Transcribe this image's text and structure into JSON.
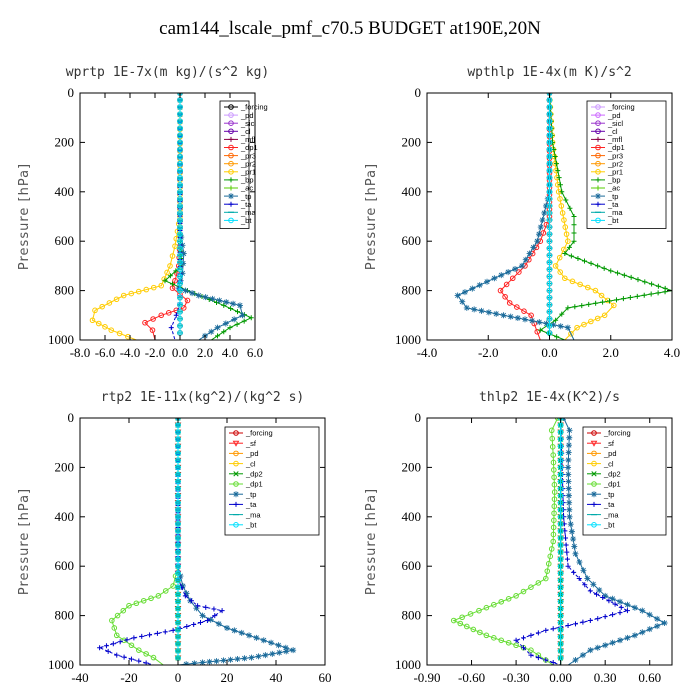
{
  "title": "cam144_lscale_pmf_c70.5  BUDGET at190E,20N",
  "chart_data": [
    {
      "type": "line",
      "title": "wprtp  1E-7x(m kg)/(s^2 kg)",
      "ylabel": "Pressure [hPa]",
      "xlim": [
        -8,
        6
      ],
      "ylim": [
        1000,
        0
      ],
      "xticks": [
        -8,
        -6,
        -4,
        -2,
        0,
        2,
        4,
        6
      ],
      "xticklabels": [
        "-8.0",
        "-6.0",
        "-4.0",
        "-2.0",
        "0.0",
        "2.0",
        "4.0",
        "6.0"
      ],
      "yticks": [
        0,
        200,
        400,
        600,
        800,
        1000
      ],
      "legend": [
        "_forcing",
        "_pd",
        "_sicl",
        "_cl",
        "_mfl",
        "_dp1",
        "_pr3",
        "_pr2",
        "_pr1",
        "_bp",
        "_ac",
        "_tp",
        "_ta",
        "_ma",
        "_bt"
      ],
      "series": [
        {
          "name": "_forcing",
          "color": "#000000",
          "marker": "o",
          "x": [
            0,
            0
          ],
          "y": [
            0,
            1000
          ]
        },
        {
          "name": "_pd",
          "color": "#cc99ff",
          "marker": "o",
          "x": [
            0,
            0
          ],
          "y": [
            0,
            1000
          ]
        },
        {
          "name": "_sicl",
          "color": "#9933cc",
          "marker": "o",
          "x": [
            0,
            0
          ],
          "y": [
            0,
            1000
          ]
        },
        {
          "name": "_cl",
          "color": "#6600aa",
          "marker": "o",
          "x": [
            0,
            0
          ],
          "y": [
            0,
            1000
          ]
        },
        {
          "name": "_mfl",
          "color": "#880044",
          "marker": "+",
          "x": [
            0,
            0
          ],
          "y": [
            0,
            1000
          ]
        },
        {
          "name": "_dp1",
          "color": "#ff2222",
          "marker": "o",
          "x": [
            0,
            0,
            -0.1,
            -0.4,
            -0.6,
            0.6,
            0.3,
            -1.5,
            -2.8,
            -2.2,
            -2.0
          ],
          "y": [
            0,
            600,
            700,
            760,
            790,
            840,
            870,
            900,
            930,
            960,
            1000
          ]
        },
        {
          "name": "_pr3",
          "color": "#ff6600",
          "marker": "o",
          "x": [
            0,
            0
          ],
          "y": [
            0,
            1000
          ]
        },
        {
          "name": "_pr2",
          "color": "#ff9900",
          "marker": "o",
          "x": [
            0,
            0
          ],
          "y": [
            0,
            1000
          ]
        },
        {
          "name": "_pr1",
          "color": "#ffcc00",
          "marker": "o",
          "x": [
            0,
            0,
            -0.4,
            -0.8,
            -1.5,
            -4.5,
            -6.8,
            -7.0,
            -5.5,
            -3.5
          ],
          "y": [
            0,
            500,
            620,
            700,
            780,
            820,
            880,
            920,
            960,
            1000
          ]
        },
        {
          "name": "_bp",
          "color": "#009900",
          "marker": "+",
          "x": [
            0,
            0,
            0.1,
            -1.2,
            0.6,
            3.5,
            5.7,
            4.0,
            2.5
          ],
          "y": [
            0,
            550,
            700,
            760,
            800,
            860,
            910,
            950,
            1000
          ]
        },
        {
          "name": "_ac",
          "color": "#55cc00",
          "marker": "+",
          "x": [
            0,
            0
          ],
          "y": [
            0,
            1000
          ]
        },
        {
          "name": "_tp",
          "color": "#1a6a9a",
          "marker": "*",
          "x": [
            0,
            0,
            0.3,
            0.2,
            -0.1,
            1.5,
            4.8,
            5.0,
            3.0,
            1.5
          ],
          "y": [
            0,
            550,
            650,
            730,
            790,
            820,
            860,
            900,
            950,
            1000
          ]
        },
        {
          "name": "_ta",
          "color": "#0000cc",
          "marker": "+",
          "x": [
            0,
            0,
            -0.3,
            -0.7,
            -0.4
          ],
          "y": [
            0,
            850,
            900,
            950,
            1000
          ]
        },
        {
          "name": "_ma",
          "color": "#00aaaa",
          "marker": "-",
          "x": [
            0,
            0
          ],
          "y": [
            0,
            1000
          ]
        },
        {
          "name": "_bt",
          "color": "#00e0ff",
          "marker": "o",
          "x": [
            0,
            0
          ],
          "y": [
            0,
            1000
          ]
        }
      ]
    },
    {
      "type": "line",
      "title": "wpthlp  1E-4x(m K)/s^2",
      "ylabel": "Pressure [hPa]",
      "xlim": [
        -4,
        4
      ],
      "ylim": [
        1000,
        0
      ],
      "xticks": [
        -4,
        -2,
        0,
        2,
        4
      ],
      "xticklabels": [
        "-4.0",
        "-2.0",
        "0.0",
        "2.0",
        "4.0"
      ],
      "yticks": [
        0,
        200,
        400,
        600,
        800,
        1000
      ],
      "legend": [
        "_forcing",
        "_pd",
        "_sicl",
        "_cl",
        "_mfl",
        "_dp1",
        "_pr3",
        "_pr2",
        "_pr1",
        "_bp",
        "_ac",
        "_tp",
        "_ta",
        "_ma",
        "_bt"
      ],
      "series": [
        {
          "name": "_forcing",
          "color": "#cc99ff",
          "marker": "o",
          "x": [
            0,
            0
          ],
          "y": [
            0,
            1000
          ]
        },
        {
          "name": "_pd",
          "color": "#cc66ff",
          "marker": "o",
          "x": [
            0,
            0
          ],
          "y": [
            0,
            1000
          ]
        },
        {
          "name": "_sicl",
          "color": "#9933cc",
          "marker": "o",
          "x": [
            0,
            0
          ],
          "y": [
            0,
            1000
          ]
        },
        {
          "name": "_cl",
          "color": "#6600aa",
          "marker": "o",
          "x": [
            0,
            0
          ],
          "y": [
            0,
            1000
          ]
        },
        {
          "name": "_mfl",
          "color": "#880044",
          "marker": "+",
          "x": [
            0,
            0
          ],
          "y": [
            0,
            1000
          ]
        },
        {
          "name": "_dp1",
          "color": "#ff2222",
          "marker": "o",
          "x": [
            0,
            0,
            -0.3,
            -0.8,
            -1.6,
            -1.3,
            -0.6,
            -0.3
          ],
          "y": [
            0,
            500,
            600,
            700,
            800,
            850,
            900,
            1000
          ]
        },
        {
          "name": "_pr3",
          "color": "#ff6600",
          "marker": "o",
          "x": [
            0,
            0
          ],
          "y": [
            0,
            1000
          ]
        },
        {
          "name": "_pr2",
          "color": "#ff9900",
          "marker": "o",
          "x": [
            0,
            0
          ],
          "y": [
            0,
            1000
          ]
        },
        {
          "name": "_pr1",
          "color": "#ffcc00",
          "marker": "o",
          "x": [
            0,
            0.1,
            0.3,
            0.6,
            0.2,
            0.5,
            1.5,
            2.1,
            1.8,
            0.9,
            0.5
          ],
          "y": [
            0,
            200,
            400,
            600,
            700,
            750,
            800,
            860,
            900,
            950,
            1000
          ]
        },
        {
          "name": "_bp",
          "color": "#009900",
          "marker": "+",
          "x": [
            0,
            0.1,
            0.4,
            0.8,
            0.8,
            0.5,
            2.0,
            4.0,
            0.6,
            0.2,
            -0.3,
            0.5
          ],
          "y": [
            0,
            200,
            400,
            500,
            600,
            650,
            720,
            800,
            870,
            920,
            960,
            1000
          ]
        },
        {
          "name": "_ac",
          "color": "#55cc00",
          "marker": "+",
          "x": [
            0,
            0
          ],
          "y": [
            0,
            1000
          ]
        },
        {
          "name": "_tp",
          "color": "#1a6a9a",
          "marker": "*",
          "x": [
            0,
            0,
            -0.4,
            -0.9,
            -1.8,
            -3.0,
            -2.7,
            -1.5,
            0.6,
            0.8
          ],
          "y": [
            0,
            400,
            600,
            700,
            750,
            820,
            870,
            900,
            950,
            1000
          ]
        },
        {
          "name": "_ta",
          "color": "#0000cc",
          "marker": "+",
          "x": [
            0,
            0
          ],
          "y": [
            0,
            1000
          ]
        },
        {
          "name": "_ma",
          "color": "#00aaaa",
          "marker": "-",
          "x": [
            0,
            0
          ],
          "y": [
            0,
            1000
          ]
        },
        {
          "name": "_bt",
          "color": "#00e0ff",
          "marker": "o",
          "x": [
            0,
            0
          ],
          "y": [
            0,
            1000
          ]
        }
      ]
    },
    {
      "type": "line",
      "title": "rtp2  1E-11x(kg^2)/(kg^2 s)",
      "ylabel": "Pressure [hPa]",
      "xlim": [
        -40,
        60
      ],
      "ylim": [
        1000,
        0
      ],
      "xticks": [
        -40,
        -20,
        0,
        20,
        40,
        60
      ],
      "xticklabels": [
        "-40",
        "-20",
        "0",
        "20",
        "40",
        "60"
      ],
      "yticks": [
        0,
        200,
        400,
        600,
        800,
        1000
      ],
      "legend": [
        "_forcing",
        "_sf",
        "_pd",
        "_cl",
        "_dp2",
        "_dp1",
        "_tp",
        "_ta",
        "_ma",
        "_bt"
      ],
      "series": [
        {
          "name": "_forcing",
          "color": "#cc0000",
          "marker": "o",
          "x": [
            0,
            0
          ],
          "y": [
            0,
            1000
          ]
        },
        {
          "name": "_sf",
          "color": "#ff2222",
          "marker": "v",
          "x": [
            0,
            0
          ],
          "y": [
            0,
            1000
          ]
        },
        {
          "name": "_pd",
          "color": "#ff9900",
          "marker": "o",
          "x": [
            0,
            0
          ],
          "y": [
            0,
            1000
          ]
        },
        {
          "name": "_cl",
          "color": "#ffcc00",
          "marker": "o",
          "x": [
            0,
            0
          ],
          "y": [
            0,
            1000
          ]
        },
        {
          "name": "_dp2",
          "color": "#009900",
          "marker": "x",
          "x": [
            0,
            0
          ],
          "y": [
            0,
            1000
          ]
        },
        {
          "name": "_dp1",
          "color": "#66dd33",
          "marker": "o",
          "x": [
            0,
            0,
            -2,
            -8,
            -20,
            -27,
            -25,
            -16,
            -10,
            -6
          ],
          "y": [
            0,
            600,
            680,
            720,
            760,
            820,
            880,
            940,
            970,
            1000
          ]
        },
        {
          "name": "_tp",
          "color": "#1a6a9a",
          "marker": "*",
          "x": [
            0,
            0,
            2,
            5,
            10,
            20,
            35,
            47,
            30,
            10,
            0
          ],
          "y": [
            0,
            600,
            680,
            740,
            800,
            850,
            900,
            940,
            970,
            990,
            1000
          ]
        },
        {
          "name": "_ta",
          "color": "#0000cc",
          "marker": "+",
          "x": [
            0,
            0,
            3,
            8,
            18,
            12,
            -2,
            -18,
            -32,
            -25,
            -10
          ],
          "y": [
            0,
            650,
            720,
            760,
            780,
            820,
            860,
            890,
            930,
            960,
            1000
          ]
        },
        {
          "name": "_ma",
          "color": "#00aaaa",
          "marker": "-",
          "x": [
            0,
            0
          ],
          "y": [
            0,
            1000
          ]
        },
        {
          "name": "_bt",
          "color": "#00e0ff",
          "marker": "o",
          "x": [
            0,
            0
          ],
          "y": [
            0,
            1000
          ]
        }
      ]
    },
    {
      "type": "line",
      "title": "thlp2  1E-4x(K^2)/s",
      "ylabel": "Pressure [hPa]",
      "xlim": [
        -0.9,
        0.75
      ],
      "ylim": [
        1000,
        0
      ],
      "xticks": [
        -0.9,
        -0.6,
        -0.3,
        0,
        0.3,
        0.6
      ],
      "xticklabels": [
        "-0.90",
        "-0.60",
        "-0.30",
        "0.00",
        "0.30",
        "0.60"
      ],
      "yticks": [
        0,
        200,
        400,
        600,
        800,
        1000
      ],
      "legend": [
        "_forcing",
        "_sf",
        "_pd",
        "_cl",
        "_dp2",
        "_dp1",
        "_tp",
        "_ta",
        "_ma",
        "_bt"
      ],
      "series": [
        {
          "name": "_forcing",
          "color": "#cc0000",
          "marker": "o",
          "x": [
            0,
            0
          ],
          "y": [
            0,
            1000
          ]
        },
        {
          "name": "_sf",
          "color": "#ff2222",
          "marker": "v",
          "x": [
            0,
            0
          ],
          "y": [
            0,
            1000
          ]
        },
        {
          "name": "_pd",
          "color": "#ff9900",
          "marker": "o",
          "x": [
            0,
            0
          ],
          "y": [
            0,
            1000
          ]
        },
        {
          "name": "_cl",
          "color": "#ffcc00",
          "marker": "o",
          "x": [
            0,
            0
          ],
          "y": [
            0,
            1000
          ]
        },
        {
          "name": "_dp2",
          "color": "#009900",
          "marker": "x",
          "x": [
            0,
            0
          ],
          "y": [
            0,
            1000
          ]
        },
        {
          "name": "_dp1",
          "color": "#66dd33",
          "marker": "o",
          "x": [
            -0.02,
            -0.06,
            -0.05,
            -0.04,
            -0.05,
            -0.1,
            -0.3,
            -0.55,
            -0.72,
            -0.5,
            -0.2,
            -0.05
          ],
          "y": [
            0,
            50,
            150,
            300,
            500,
            650,
            720,
            780,
            820,
            880,
            940,
            1000
          ]
        },
        {
          "name": "_tp",
          "color": "#1a6a9a",
          "marker": "*",
          "x": [
            0.02,
            0.06,
            0.05,
            0.06,
            0.1,
            0.18,
            0.3,
            0.55,
            0.7,
            0.5,
            0.2,
            0.05
          ],
          "y": [
            0,
            50,
            200,
            400,
            550,
            650,
            720,
            780,
            830,
            880,
            940,
            1000
          ]
        },
        {
          "name": "_ta",
          "color": "#0000cc",
          "marker": "+",
          "x": [
            0,
            0.02,
            0.05,
            0.2,
            0.45,
            0.2,
            -0.1,
            -0.3,
            -0.2,
            0
          ],
          "y": [
            0,
            400,
            600,
            700,
            780,
            820,
            860,
            900,
            960,
            1000
          ]
        },
        {
          "name": "_ma",
          "color": "#00aaaa",
          "marker": "-",
          "x": [
            0,
            0
          ],
          "y": [
            0,
            1000
          ]
        },
        {
          "name": "_bt",
          "color": "#00e0ff",
          "marker": "o",
          "x": [
            0,
            0
          ],
          "y": [
            0,
            1000
          ]
        }
      ]
    }
  ]
}
